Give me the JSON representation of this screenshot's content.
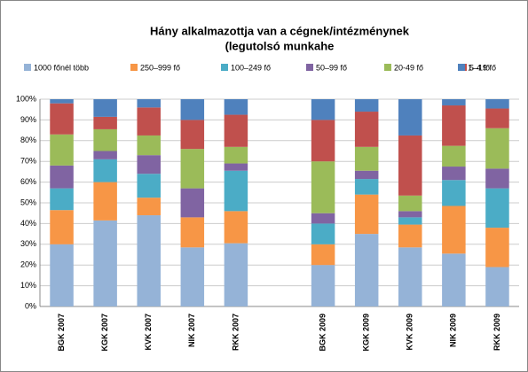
{
  "chart_data": {
    "type": "stacked_bar",
    "title": [
      "Hány alkalmazottja van a cégnek/intézménynek",
      "(legutolsó munkahe"
    ],
    "categories": [
      "BGK 2007",
      "KGK 2007",
      "KVK 2007",
      "NIK 2007",
      "RKK 2007",
      null,
      "BGK 2009",
      "KGK 2009",
      "KVK 2009",
      "NIK 2009",
      "RKK 2009"
    ],
    "series": [
      {
        "name": "1000 főnél több",
        "color": "#95b3d7",
        "values": [
          30,
          41.5,
          44,
          28.5,
          30.5,
          null,
          20,
          35,
          28.5,
          25.5,
          19
        ]
      },
      {
        "name": "250–999 fő",
        "color": "#f79646",
        "values": [
          16.5,
          18.5,
          8.5,
          14.5,
          15.5,
          null,
          10,
          19,
          11,
          23,
          19
        ]
      },
      {
        "name": "100–249 fő",
        "color": "#4bacc6",
        "values": [
          10.5,
          11,
          11.5,
          0,
          19.5,
          null,
          10,
          7.5,
          3.5,
          12.5,
          19
        ]
      },
      {
        "name": "50–99 fő",
        "color": "#8064a2",
        "values": [
          11,
          4,
          9,
          14,
          3.5,
          null,
          5,
          4,
          3,
          6.5,
          9.5
        ]
      },
      {
        "name": "20-49 fő",
        "color": "#9bbb59",
        "values": [
          15,
          10.5,
          9.5,
          19,
          8,
          null,
          25,
          11.5,
          7.5,
          10,
          19.5
        ]
      },
      {
        "name": "5–19 fő",
        "color": "#c0504d",
        "values": [
          15,
          6,
          13.5,
          14,
          15.5,
          null,
          20,
          17,
          29,
          19.5,
          9.5
        ]
      },
      {
        "name": "1–4 fő",
        "color": "#4f81bd",
        "values": [
          2,
          8.5,
          4,
          10,
          7.5,
          null,
          10,
          6,
          17.5,
          3,
          4.5
        ]
      }
    ],
    "ylim": [
      0,
      100
    ],
    "yticks": [
      {
        "value": 0,
        "label": "0%"
      },
      {
        "value": 10,
        "label": "10%"
      },
      {
        "value": 20,
        "label": "20%"
      },
      {
        "value": 30,
        "label": "30%"
      },
      {
        "value": 40,
        "label": "40%"
      },
      {
        "value": 50,
        "label": "50%"
      },
      {
        "value": 60,
        "label": "60%"
      },
      {
        "value": 70,
        "label": "70%"
      },
      {
        "value": 80,
        "label": "80%"
      },
      {
        "value": 90,
        "label": "90%"
      },
      {
        "value": 100,
        "label": "100%"
      }
    ],
    "grid": true,
    "legend": "top"
  }
}
